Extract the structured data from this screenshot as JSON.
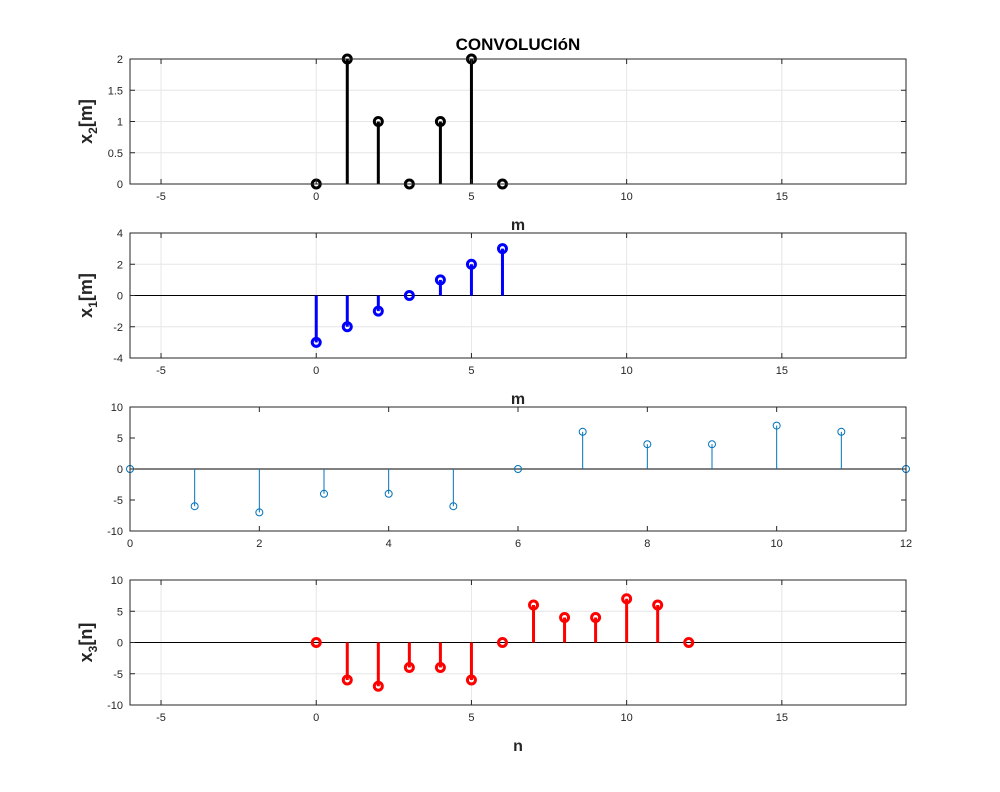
{
  "chart_data": [
    {
      "type": "stem",
      "title": "CONVOLUCIóN",
      "xlabel": "m",
      "ylabel": "x_2[m]",
      "ylabel_base": "x",
      "ylabel_sub": "2",
      "ylabel_arg": "[m]",
      "xlim": [
        -6,
        19
      ],
      "ylim": [
        0,
        2
      ],
      "xticks": [
        -5,
        0,
        5,
        10,
        15
      ],
      "yticks": [
        0,
        0.5,
        1,
        1.5,
        2
      ],
      "grid": true,
      "baseline": false,
      "color": "#000000",
      "marker_size": "large",
      "line_weight": "thick",
      "x": [
        0,
        1,
        2,
        3,
        4,
        5,
        6
      ],
      "y": [
        0,
        2,
        1,
        0,
        1,
        2,
        0
      ]
    },
    {
      "type": "stem",
      "title": "",
      "xlabel": "m",
      "ylabel": "x_1[m]",
      "ylabel_base": "x",
      "ylabel_sub": "1",
      "ylabel_arg": "[m]",
      "xlim": [
        -6,
        19
      ],
      "ylim": [
        -4,
        4
      ],
      "xticks": [
        -5,
        0,
        5,
        10,
        15
      ],
      "yticks": [
        -4,
        -2,
        0,
        2,
        4
      ],
      "grid": true,
      "baseline": true,
      "color": "#0000ff",
      "marker_size": "large",
      "line_weight": "thick",
      "x": [
        0,
        1,
        2,
        3,
        4,
        5,
        6
      ],
      "y": [
        -3,
        -2,
        -1,
        0,
        1,
        2,
        3
      ]
    },
    {
      "type": "stem",
      "title": "",
      "xlabel": "",
      "ylabel": "",
      "xlim": [
        0,
        12
      ],
      "ylim": [
        -10,
        10
      ],
      "xticks": [
        0,
        2,
        4,
        6,
        8,
        10,
        12
      ],
      "yticks": [
        -10,
        -5,
        0,
        5,
        10
      ],
      "grid": false,
      "baseline": true,
      "color": "#0072bd",
      "marker_size": "small",
      "line_weight": "thin",
      "x": [
        0,
        1,
        2,
        3,
        4,
        5,
        6,
        7,
        8,
        9,
        10,
        11,
        12
      ],
      "y": [
        0,
        -6,
        -7,
        -4,
        -4,
        -6,
        0,
        6,
        4,
        4,
        7,
        6,
        0
      ]
    },
    {
      "type": "stem",
      "title": "",
      "xlabel": "n",
      "ylabel": "x_3[n]",
      "ylabel_base": "x",
      "ylabel_sub": "3",
      "ylabel_arg": "[n]",
      "xlim": [
        -6,
        19
      ],
      "ylim": [
        -10,
        10
      ],
      "xticks": [
        -5,
        0,
        5,
        10,
        15
      ],
      "yticks": [
        -10,
        -5,
        0,
        5,
        10
      ],
      "grid": true,
      "baseline": true,
      "color": "#ff0000",
      "marker_size": "large",
      "line_weight": "thick",
      "x": [
        0,
        1,
        2,
        3,
        4,
        5,
        6,
        7,
        8,
        9,
        10,
        11,
        12
      ],
      "y": [
        0,
        -6,
        -7,
        -4,
        -4,
        -6,
        0,
        6,
        4,
        4,
        7,
        6,
        0
      ]
    }
  ]
}
